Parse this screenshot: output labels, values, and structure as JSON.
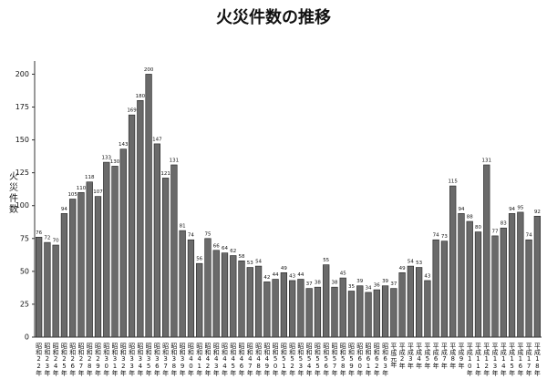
{
  "chart_data": {
    "type": "bar",
    "title": "火災件数の推移",
    "y_label": "火災件数",
    "categories": [
      "昭和22年",
      "昭和23年",
      "昭和24年",
      "昭和25年",
      "昭和26年",
      "昭和27年",
      "昭和28年",
      "昭和29年",
      "昭和30年",
      "昭和31年",
      "昭和32年",
      "昭和33年",
      "昭和34年",
      "昭和35年",
      "昭和36年",
      "昭和37年",
      "昭和38年",
      "昭和39年",
      "昭和40年",
      "昭和41年",
      "昭和42年",
      "昭和43年",
      "昭和44年",
      "昭和45年",
      "昭和46年",
      "昭和47年",
      "昭和48年",
      "昭和49年",
      "昭和50年",
      "昭和51年",
      "昭和52年",
      "昭和53年",
      "昭和54年",
      "昭和55年",
      "昭和56年",
      "昭和57年",
      "昭和58年",
      "昭和59年",
      "昭和60年",
      "昭和61年",
      "昭和62年",
      "昭和63年",
      "平成元年",
      "平成2年",
      "平成3年",
      "平成4年",
      "平成5年",
      "平成6年",
      "平成7年",
      "平成8年",
      "平成9年",
      "平成10年",
      "平成11年",
      "平成12年",
      "平成13年",
      "平成14年",
      "平成15年",
      "平成16年",
      "平成17年",
      "平成18年"
    ],
    "values": [
      76,
      72,
      70,
      94,
      105,
      110,
      118,
      107,
      133,
      130,
      143,
      169,
      180,
      200,
      147,
      121,
      131,
      81,
      74,
      56,
      75,
      66,
      64,
      62,
      58,
      53,
      54,
      42,
      44,
      49,
      43,
      44,
      37,
      38,
      55,
      38,
      45,
      35,
      39,
      34,
      36,
      39,
      37,
      49,
      54,
      53,
      43,
      74,
      73,
      115,
      94,
      88,
      80,
      131,
      77,
      83,
      94,
      95,
      74,
      92
    ],
    "color": "#6a6a6a",
    "ylim": [
      0,
      210
    ],
    "yticks": [
      0,
      25,
      50,
      75,
      100,
      125,
      150,
      175,
      200
    ],
    "grid": false
  }
}
